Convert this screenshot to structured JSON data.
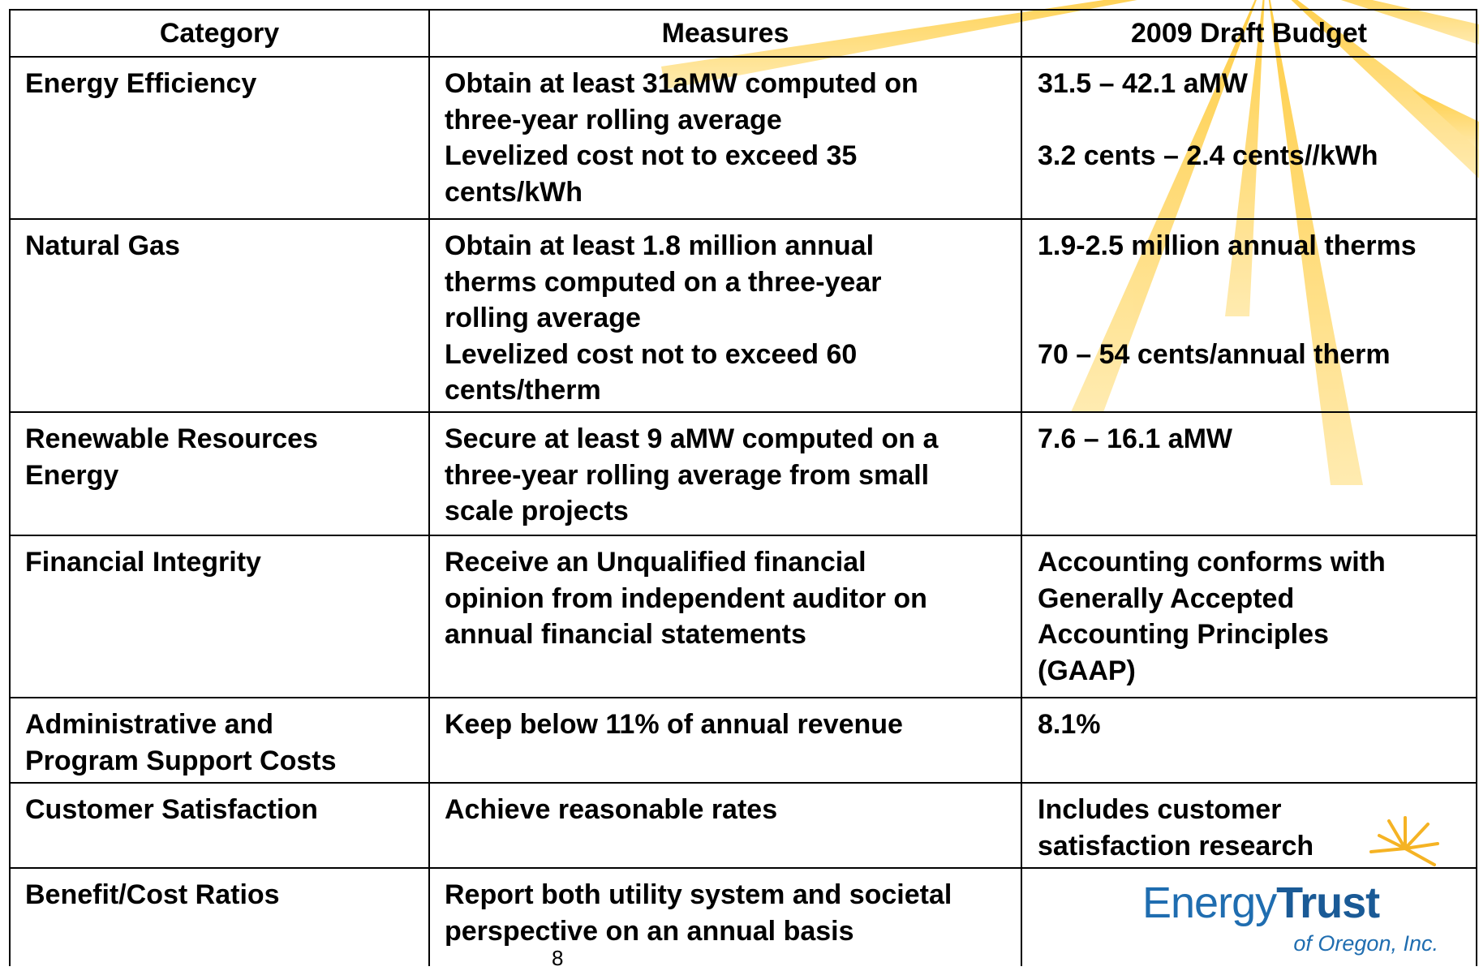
{
  "table": {
    "header": [
      "Category",
      "Measures",
      "2009 Draft Budget"
    ],
    "rows": [
      {
        "category": [
          "Energy Efficiency"
        ],
        "measures": [
          [
            "Obtain at least 31aMW computed on",
            "three-year rolling average"
          ],
          [
            "Levelized cost not to exceed 35",
            "cents/kWh"
          ]
        ],
        "budget": [
          [
            "31.5 – 42.1 aMW"
          ],
          [
            "3.2 cents – 2.4 cents//kWh"
          ]
        ]
      },
      {
        "category": [
          "Natural Gas"
        ],
        "measures": [
          [
            "Obtain at least 1.8 million annual",
            "therms computed on a three-year",
            "rolling average"
          ],
          [
            "Levelized cost not to exceed 60",
            "cents/therm"
          ]
        ],
        "budget": [
          [
            "1.9-2.5 million annual therms"
          ],
          [
            "70 – 54 cents/annual therm"
          ]
        ]
      },
      {
        "category": [
          "Renewable Resources",
          "Energy"
        ],
        "measures": [
          [
            "Secure at least 9 aMW computed on a",
            "three-year rolling average from small",
            "scale projects"
          ]
        ],
        "budget": [
          [
            "7.6 – 16.1 aMW"
          ]
        ]
      },
      {
        "category": [
          "Financial Integrity"
        ],
        "measures": [
          [
            "Receive an Unqualified financial",
            "opinion from independent auditor on",
            "annual financial statements"
          ]
        ],
        "budget": [
          [
            "Accounting conforms with",
            "Generally Accepted",
            "Accounting Principles",
            "(GAAP)"
          ]
        ]
      },
      {
        "category": [
          "Administrative and",
          "Program Support Costs"
        ],
        "measures": [
          [
            "Keep below 11% of annual revenue"
          ]
        ],
        "budget": [
          [
            "8.1%"
          ]
        ]
      },
      {
        "category": [
          "Customer Satisfaction"
        ],
        "measures": [
          [
            "Achieve reasonable rates"
          ]
        ],
        "budget": [
          [
            "Includes customer",
            "satisfaction research"
          ]
        ]
      },
      {
        "category": [
          "Benefit/Cost Ratios"
        ],
        "measures": [
          [
            "Report both utility system and societal",
            "perspective on an annual basis"
          ]
        ],
        "budget": []
      }
    ]
  },
  "logo": {
    "word1": "Energy",
    "word2": "Trust",
    "subtitle": "of Oregon, Inc."
  },
  "page_number": "8"
}
